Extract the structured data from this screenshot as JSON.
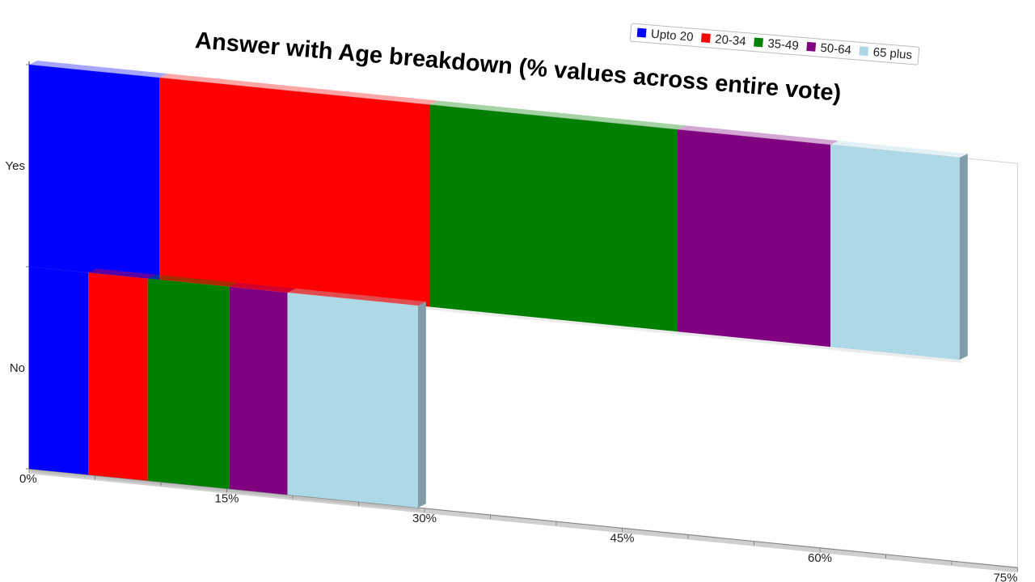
{
  "chart_data": {
    "type": "bar",
    "orientation": "horizontal",
    "stacked": true,
    "style": "3d-perspective",
    "title": "Answer with Age breakdown (% values across entire vote)",
    "categories": [
      "Yes",
      "No"
    ],
    "series": [
      {
        "name": "Upto 20",
        "values": [
          9.9,
          4.5
        ],
        "color": "#0000ff"
      },
      {
        "name": "20-34",
        "values": [
          20.5,
          4.5
        ],
        "color": "#ff0000"
      },
      {
        "name": "35-49",
        "values": [
          18.8,
          6.2
        ],
        "color": "#008000"
      },
      {
        "name": "50-64",
        "values": [
          11.6,
          4.4
        ],
        "color": "#800080"
      },
      {
        "name": "65 plus",
        "values": [
          9.8,
          9.9
        ],
        "color": "#add8e6"
      }
    ],
    "xlim": [
      0,
      75
    ],
    "x_ticks": [
      "0%",
      "15%",
      "30%",
      "45%",
      "60%",
      "75%"
    ],
    "x_tick_values": [
      0,
      15,
      30,
      45,
      60,
      75
    ],
    "legend_position": "top-right",
    "grid": false
  }
}
